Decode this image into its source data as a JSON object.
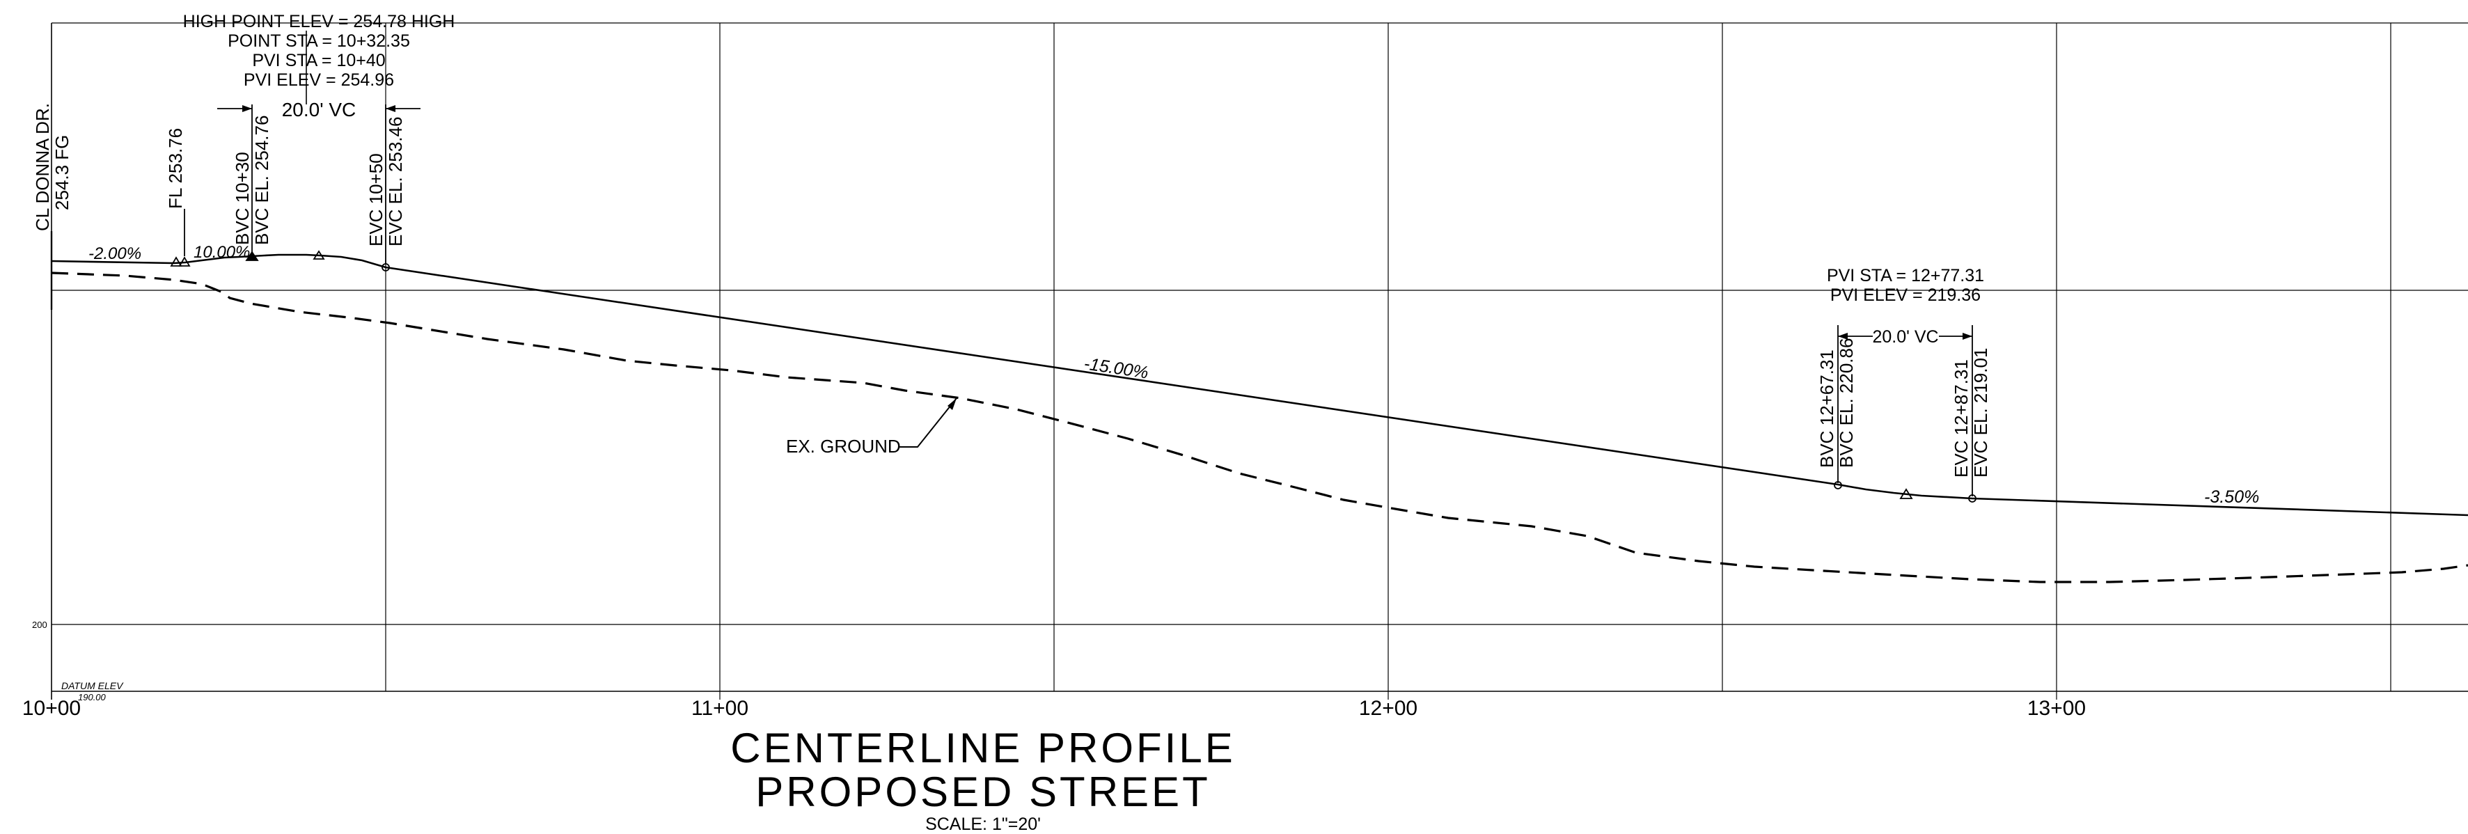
{
  "title": {
    "line1": "CENTERLINE PROFILE",
    "line2": "PROPOSED STREET",
    "scale": "SCALE: 1\"=20'"
  },
  "stations": [
    "10+00",
    "11+00",
    "12+00",
    "13+00"
  ],
  "elevation_tick": "200",
  "datum": {
    "label": "DATUM ELEV",
    "value": "190.00"
  },
  "high_point": {
    "line1": "HIGH POINT ELEV = 254.78 HIGH",
    "line2": "POINT STA = 10+32.35",
    "line3": "PVI STA = 10+40",
    "line4": "PVI ELEV = 254.96",
    "vc": "20.0' VC"
  },
  "vertical_labels": {
    "cl_a": "CL DONNA DR.",
    "cl_b": "254.3 FG",
    "fl": "FL 253.76",
    "bvc1_sta": "BVC 10+30",
    "bvc1_el": "BVC EL. 254.76",
    "evc1_sta": "EVC 10+50",
    "evc1_el": "EVC EL. 253.46",
    "bvc2_sta": "BVC 12+67.31",
    "bvc2_el": "BVC EL. 220.86",
    "evc2_sta": "EVC 12+87.31",
    "evc2_el": "EVC EL. 219.01"
  },
  "pvi2": {
    "line1": "PVI STA = 12+77.31",
    "line2": "PVI ELEV = 219.36",
    "vc": "20.0' VC"
  },
  "grades": {
    "g1": "-2.00%",
    "g2": "10.00%",
    "g3": "-15.00%",
    "g4": "-3.50%"
  },
  "ground_label": "EX. GROUND"
}
